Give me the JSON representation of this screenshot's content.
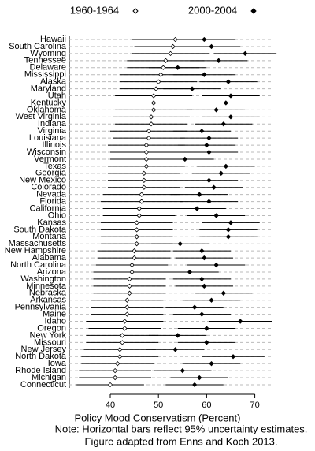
{
  "chart_data": {
    "type": "dot-interval",
    "xlabel": "Policy Mood Conservatism (Percent)",
    "notes": [
      "Note: Horizontal bars reflect 95% uncertainty estimates.",
      "Figure adapted from Enns and Koch 2013."
    ],
    "categories": [
      "Hawaii",
      "South Carolina",
      "Wyoming",
      "Tennessee",
      "Delaware",
      "Mississippi",
      "Alaska",
      "Maryland",
      "Utah",
      "Kentucky",
      "Oklahoma",
      "West Virginia",
      "Indiana",
      "Virginia",
      "Louisiana",
      "Illinois",
      "Wisconsin",
      "Vermont",
      "Texas",
      "Georgia",
      "New Mexico",
      "Colorado",
      "Nevada",
      "Florida",
      "California",
      "Ohio",
      "Kansas",
      "South Dakota",
      "Montana",
      "Massachusetts",
      "New Hampshire",
      "Alabama",
      "North Carolina",
      "Arizona",
      "Washington",
      "Minnesota",
      "Nebraska",
      "Arkansas",
      "Pennsylvania",
      "Maine",
      "Idaho",
      "Oregon",
      "New York",
      "Missouri",
      "New Jersey",
      "North Dakota",
      "Iowa",
      "Rhode Island",
      "Michigan",
      "Connecticut"
    ],
    "series": [
      {
        "name": "1960-1964",
        "color": "#000000",
        "filled": false,
        "values": [
          53.5,
          53,
          52.5,
          51.5,
          51,
          50.5,
          50,
          49.5,
          49,
          49,
          49,
          48.5,
          48.5,
          48,
          48,
          47.5,
          47.5,
          47.5,
          47.5,
          47,
          47,
          47,
          46.5,
          46.5,
          46,
          46,
          45.5,
          45.5,
          45.5,
          45.5,
          45,
          45,
          44.5,
          44.5,
          44,
          44,
          44,
          43.5,
          43.5,
          43.5,
          43,
          43,
          42.5,
          42.5,
          42,
          42,
          41.5,
          41,
          41,
          40
        ],
        "errors": [
          9,
          8,
          8,
          8,
          7.5,
          8.5,
          8,
          7.5,
          8,
          8,
          8,
          8,
          7.5,
          8,
          7.5,
          8,
          7.5,
          7.5,
          8,
          7.5,
          7.5,
          7.5,
          8,
          8.5,
          7.5,
          7.5,
          7.5,
          7.5,
          7.5,
          7.5,
          7.5,
          7.5,
          7.5,
          8,
          7.5,
          7.5,
          7.5,
          7.5,
          7.5,
          7.5,
          8,
          7.5,
          7.5,
          7.5,
          7.5,
          8,
          7.5,
          7.5,
          7.5,
          7
        ]
      },
      {
        "name": "2000-2004",
        "color": "#000000",
        "filled": true,
        "values": [
          59.5,
          61,
          68,
          62.5,
          54,
          59.5,
          64.5,
          57,
          65,
          64,
          62,
          65,
          63.5,
          59,
          60.5,
          60,
          60.5,
          55.5,
          64,
          63,
          60.5,
          61.5,
          58.5,
          60.5,
          58,
          62,
          65,
          64.5,
          64.5,
          54.5,
          59,
          59.5,
          62,
          56.5,
          59,
          59.5,
          63.5,
          61,
          57.5,
          59,
          67,
          60,
          54,
          60,
          53.5,
          65.5,
          61,
          55,
          58.5,
          57.5
        ],
        "errors": [
          6.5,
          6,
          6.5,
          6,
          6,
          6.5,
          6,
          6,
          6,
          6,
          6,
          6,
          6,
          6,
          6,
          6,
          6,
          6,
          6,
          6,
          6,
          6,
          6,
          6,
          6,
          6,
          6,
          6,
          6,
          6,
          6,
          6,
          6,
          6,
          6,
          6,
          6,
          6,
          6,
          6,
          6.5,
          6,
          6,
          6,
          6,
          6.5,
          6,
          6,
          6,
          6
        ]
      }
    ],
    "xlim": [
      31.5,
      73.5
    ],
    "xticks": [
      40,
      50,
      60,
      70
    ],
    "grid": true
  }
}
